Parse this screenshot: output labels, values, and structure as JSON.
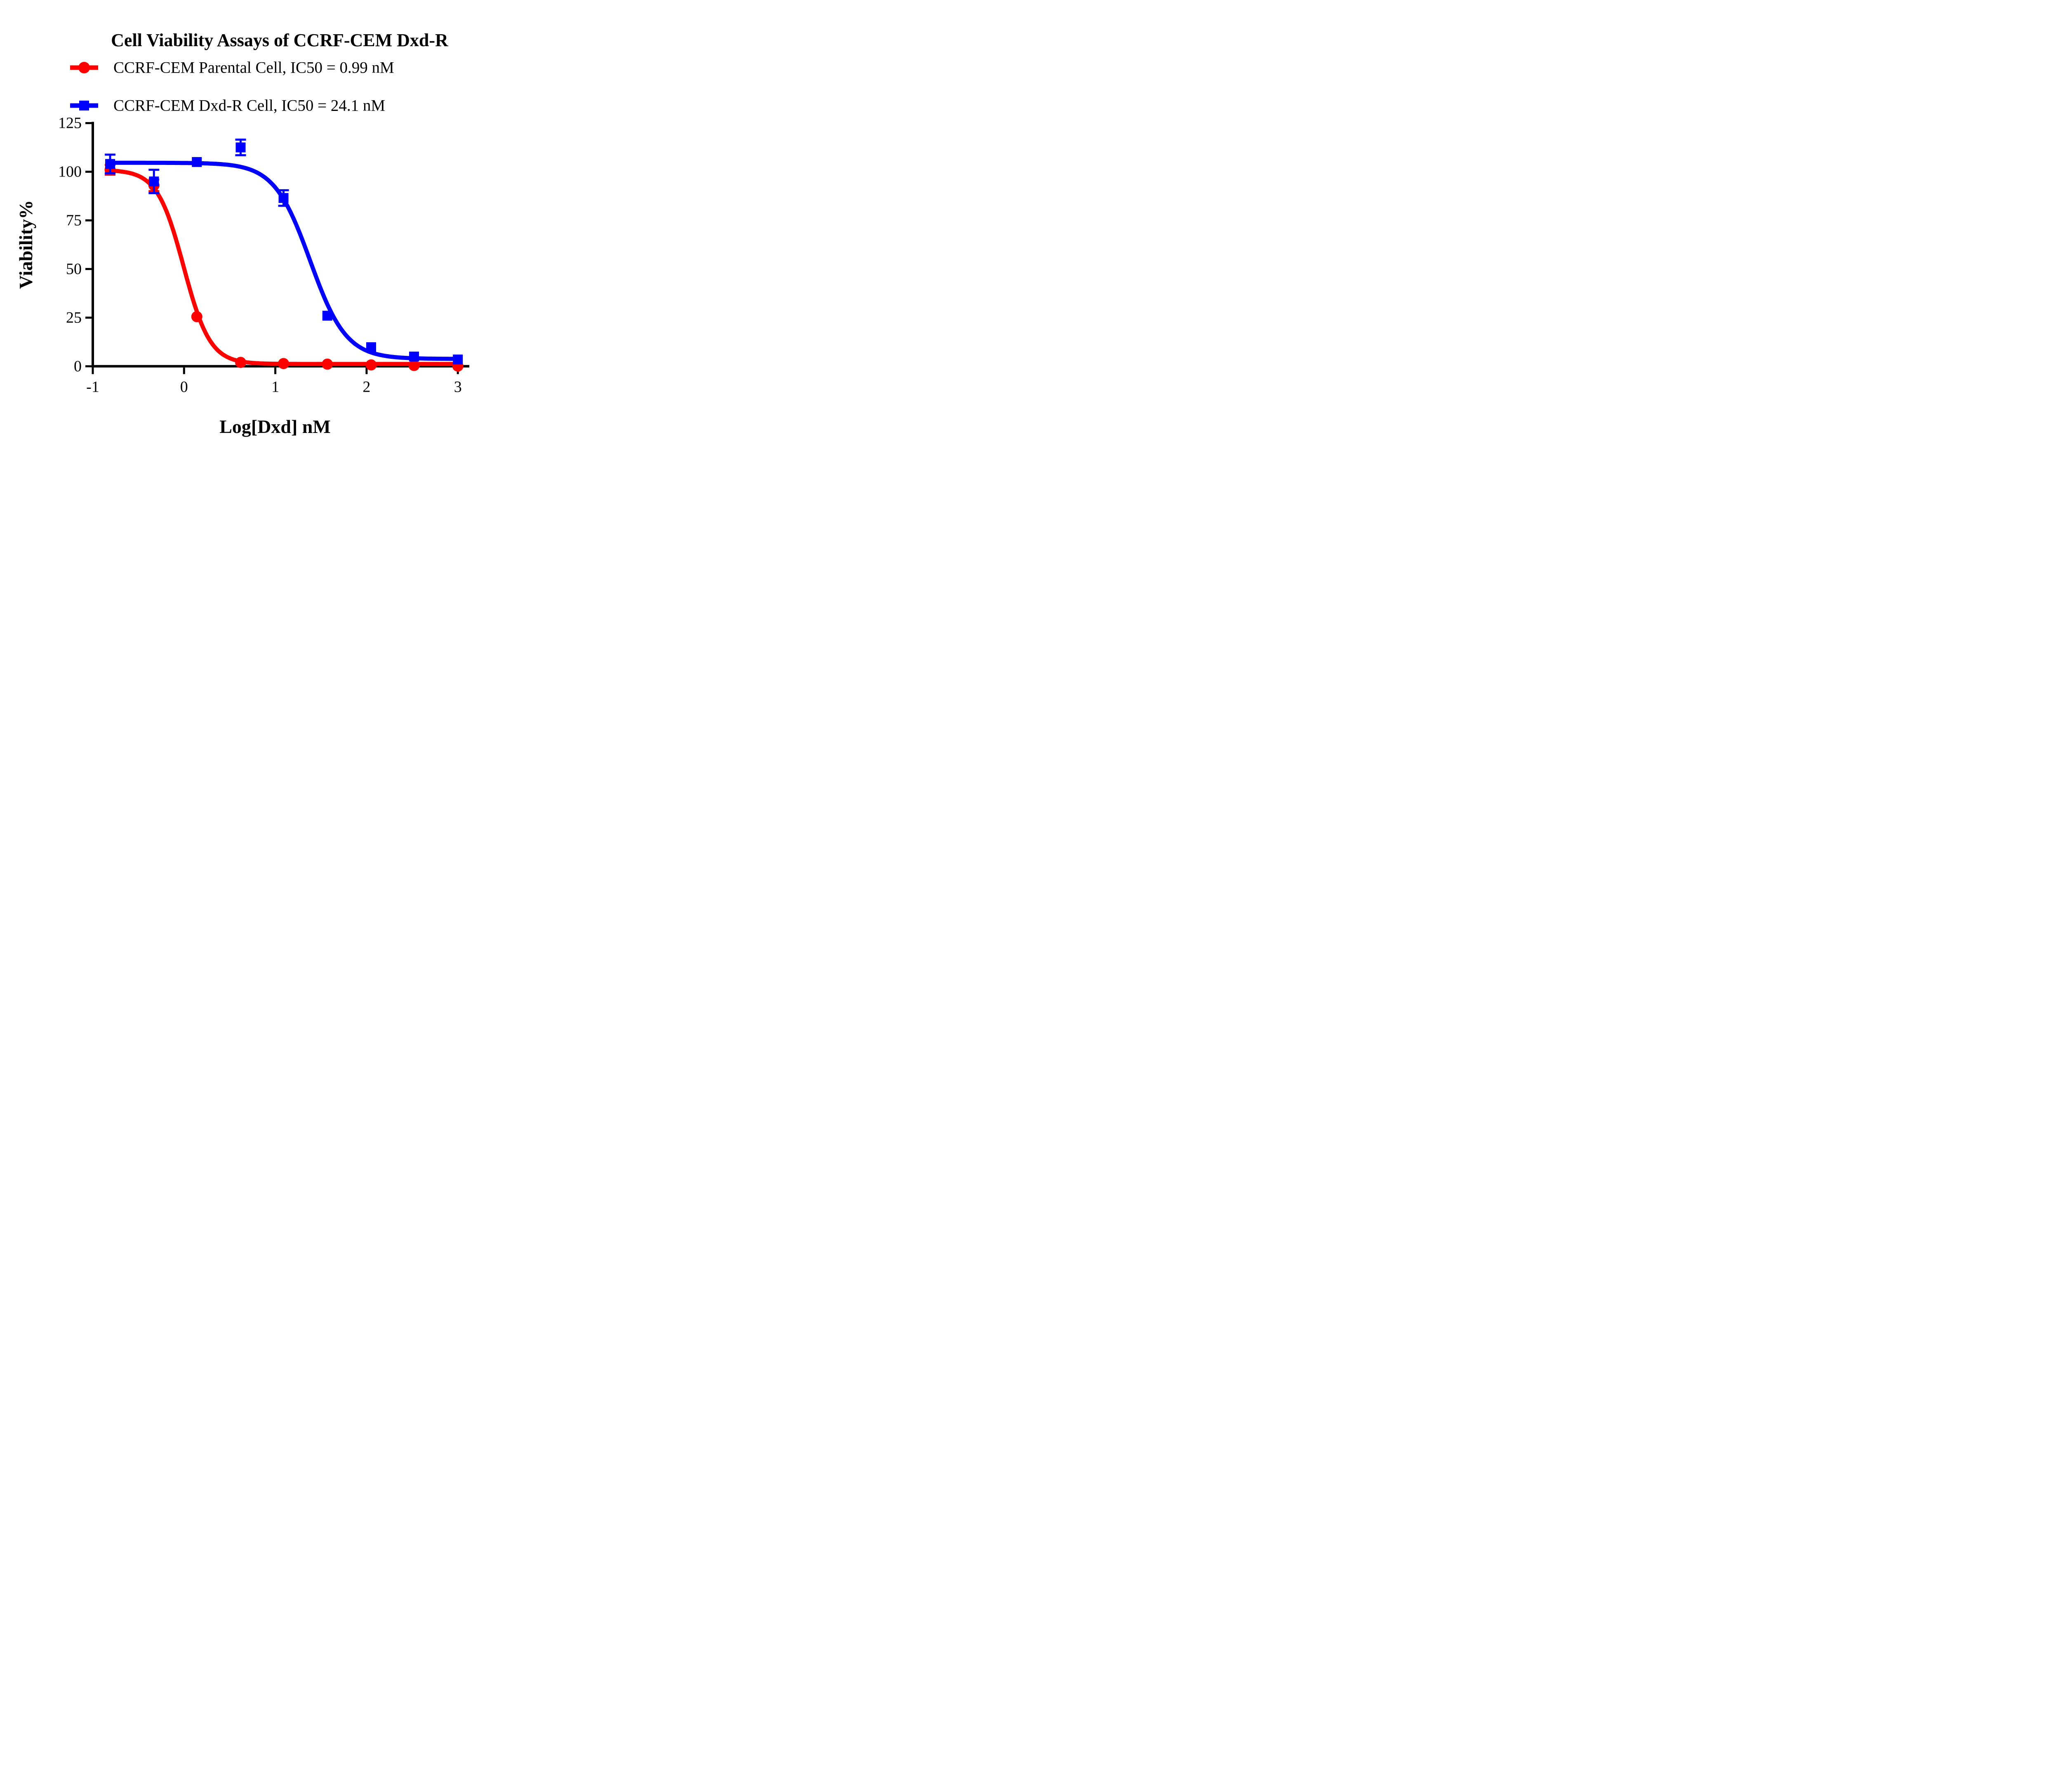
{
  "title": "Cell Viability Assays of CCRF-CEM Dxd-R",
  "legend": {
    "items": [
      {
        "label": "CCRF-CEM Parental Cell, IC50 = 0.99 nM",
        "color": "#FF0000",
        "marker": "circle"
      },
      {
        "label": "CCRF-CEM Dxd-R Cell, IC50 = 24.1 nM",
        "color": "#0000FF",
        "marker": "square"
      }
    ]
  },
  "colors": {
    "red": "#FF0000",
    "blue": "#0000FF",
    "axis": "#000000",
    "background": "#FFFFFF"
  },
  "chart_data": {
    "type": "scatter",
    "title": "Cell Viability Assays of CCRF-CEM Dxd-R",
    "xlabel": "Log[Dxd] nM",
    "ylabel": "Viability%",
    "xlim": [
      -1,
      3
    ],
    "ylim": [
      0,
      125
    ],
    "x_ticks": [
      "-1",
      "0",
      "1",
      "2",
      "3"
    ],
    "x_tick_values": [
      -1,
      0,
      1,
      2,
      3
    ],
    "y_ticks": [
      "0",
      "25",
      "50",
      "75",
      "100",
      "125"
    ],
    "y_tick_values": [
      0,
      25,
      50,
      75,
      100,
      125
    ],
    "grid": false,
    "legend_position": "top-left",
    "x": [
      -0.81,
      -0.33,
      0.14,
      0.62,
      1.09,
      1.57,
      2.05,
      2.52,
      3.0
    ],
    "series": [
      {
        "name": "CCRF-CEM Parental Cell",
        "ic50_label": "IC50 = 0.99 nM",
        "ic50_nM": 0.99,
        "color": "#FF0000",
        "marker": "circle",
        "values": [
          101,
          93,
          25.5,
          2,
          1.4,
          1.1,
          0.7,
          0.4,
          0.1
        ],
        "errors": [
          2.5,
          3,
          0,
          0,
          0,
          0,
          0,
          0,
          0
        ],
        "fit": {
          "top": 101,
          "bottom": 1.2,
          "logIC50": -0.004,
          "hill": 3.0,
          "x_start": -0.81,
          "x_end": 3.0
        }
      },
      {
        "name": "CCRF-CEM Dxd-R Cell",
        "ic50_label": "IC50 = 24.1 nM",
        "ic50_nM": 24.1,
        "color": "#0000FF",
        "marker": "square",
        "values": [
          104,
          95,
          105,
          112.5,
          86.5,
          26,
          9.8,
          5,
          3.5
        ],
        "errors": [
          4.8,
          6,
          0,
          4,
          4,
          0,
          0,
          0,
          0
        ],
        "fit": {
          "top": 104.6,
          "bottom": 3.8,
          "logIC50": 1.382,
          "hill": 2.2,
          "x_start": -0.81,
          "x_end": 3.0
        }
      }
    ]
  }
}
